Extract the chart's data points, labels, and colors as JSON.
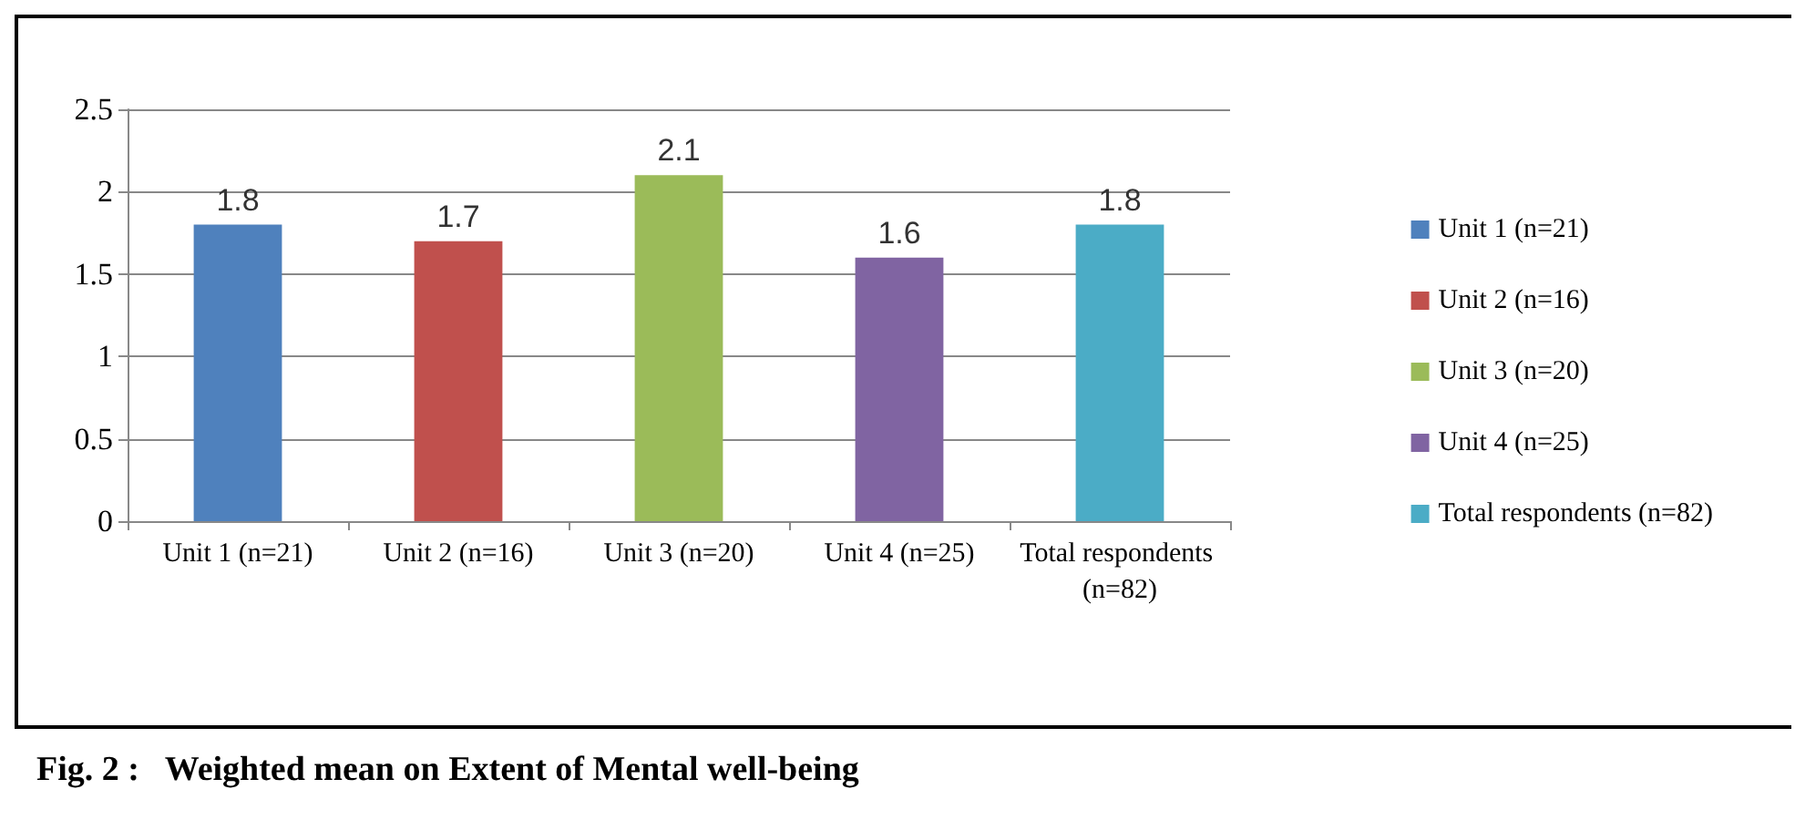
{
  "chart_data": {
    "type": "bar",
    "title": "Fig. 2 :   Weighted mean on Extent of Mental well-being",
    "categories": [
      "Unit 1 (n=21)",
      "Unit 2 (n=16)",
      "Unit 3 (n=20)",
      "Unit 4 (n=25)",
      "Total respondents (n=82)"
    ],
    "series": [
      {
        "name": "Unit 1 (n=21)",
        "color": "#4f81bd",
        "values": [
          1.8,
          null,
          null,
          null,
          null
        ]
      },
      {
        "name": "Unit 2 (n=16)",
        "color": "#c0504d",
        "values": [
          null,
          1.7,
          null,
          null,
          null
        ]
      },
      {
        "name": "Unit 3 (n=20)",
        "color": "#9bbb59",
        "values": [
          null,
          null,
          2.1,
          null,
          null
        ]
      },
      {
        "name": "Unit 4 (n=25)",
        "color": "#8064a2",
        "values": [
          null,
          null,
          null,
          1.6,
          null
        ]
      },
      {
        "name": "Total respondents (n=82)",
        "color": "#4bacc6",
        "values": [
          null,
          null,
          null,
          null,
          1.8
        ]
      }
    ],
    "ylim": [
      0,
      2.5
    ],
    "yticks": [
      0,
      0.5,
      1,
      1.5,
      2,
      2.5
    ],
    "grid": "y",
    "legend": "right",
    "data_labels": true
  }
}
